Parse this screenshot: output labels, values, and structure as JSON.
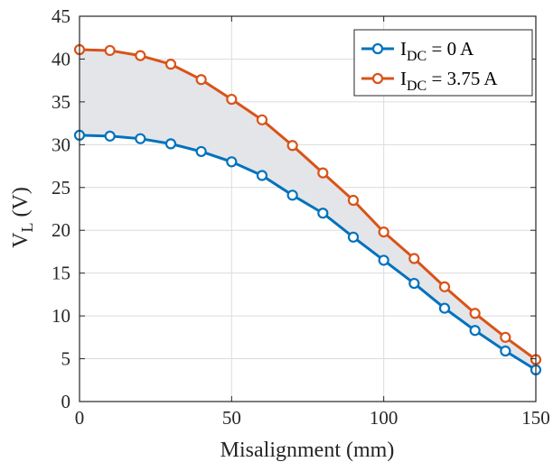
{
  "chart_data": {
    "type": "line",
    "x": [
      0,
      10,
      20,
      30,
      40,
      50,
      60,
      70,
      80,
      90,
      100,
      110,
      120,
      130,
      140,
      150
    ],
    "series": [
      {
        "name": "I_DC = 0 A",
        "legend": {
          "main": "I",
          "sub": "DC",
          "rest": " = 0 A"
        },
        "color": "#0072BD",
        "values": [
          31.1,
          31.0,
          30.7,
          30.1,
          29.2,
          28.0,
          26.4,
          24.1,
          22.0,
          19.2,
          16.5,
          13.8,
          10.9,
          8.3,
          5.9,
          3.7
        ]
      },
      {
        "name": "I_DC = 3.75 A",
        "legend": {
          "main": "I",
          "sub": "DC",
          "rest": " = 3.75 A"
        },
        "color": "#D95319",
        "values": [
          41.1,
          41.0,
          40.4,
          39.4,
          37.6,
          35.3,
          32.9,
          29.9,
          26.7,
          23.5,
          19.8,
          16.7,
          13.4,
          10.3,
          7.5,
          4.9
        ]
      }
    ],
    "fill_between": {
      "color": "#E3E5E8"
    },
    "xlabel": "Misalignment (mm)",
    "ylabel": {
      "main": "V",
      "sub": "L",
      "rest": " (V)"
    },
    "xlim": [
      0,
      150
    ],
    "ylim": [
      0,
      45
    ],
    "xticks": [
      0,
      50,
      100,
      150
    ],
    "yticks": [
      0,
      5,
      10,
      15,
      20,
      25,
      30,
      35,
      40,
      45
    ],
    "grid": true,
    "legend_position": "top-right"
  }
}
